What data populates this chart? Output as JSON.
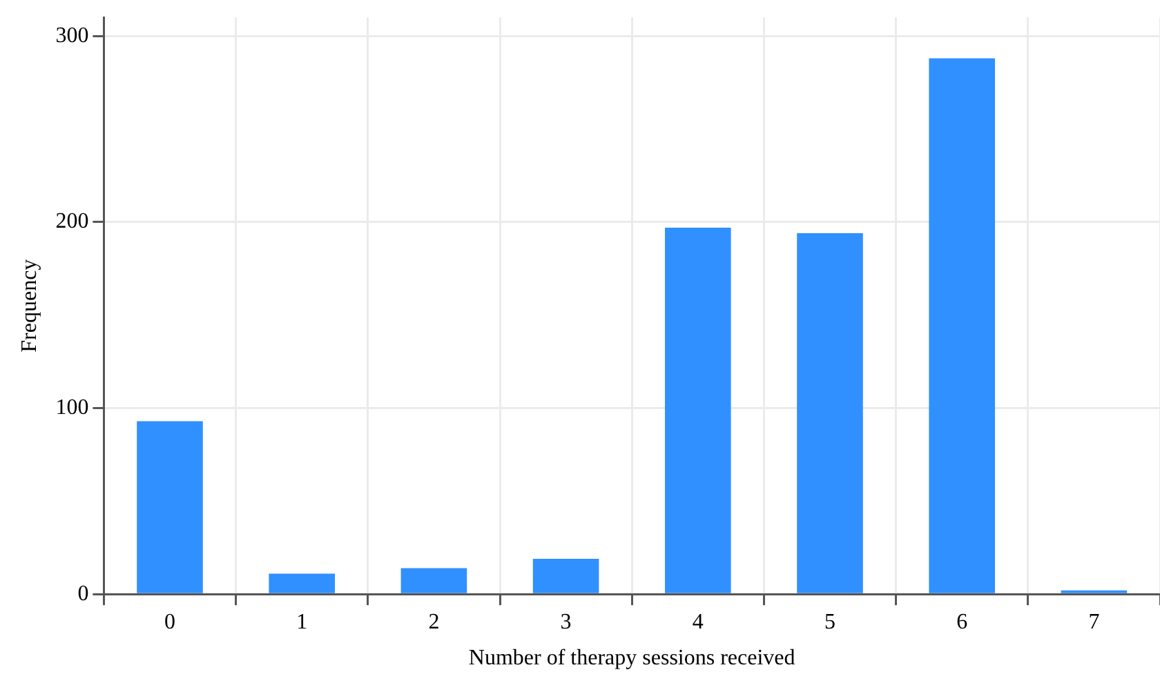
{
  "chart_data": {
    "type": "bar",
    "xlabel": "Number of therapy sessions received",
    "ylabel": "Frequency",
    "categories": [
      "0",
      "1",
      "2",
      "3",
      "4",
      "5",
      "6",
      "7"
    ],
    "values": [
      93,
      11,
      14,
      19,
      197,
      194,
      288,
      2
    ],
    "color": "#3090ff",
    "ylim": [
      0,
      310
    ],
    "yticks": [
      0,
      100,
      200,
      300
    ],
    "grid": true
  }
}
